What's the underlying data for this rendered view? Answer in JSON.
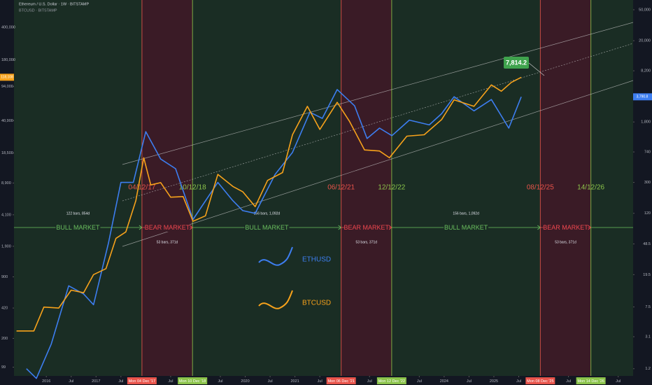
{
  "chart_data": {
    "type": "line",
    "title": "Ethereum / U.S. Dollar · 1W · BITSTAMP",
    "subtitle": "BTCUSD · BITSTAMP",
    "log_scale": true,
    "grid": false,
    "xlim": [
      2015.35,
      2027.8
    ],
    "xticks": [
      2016,
      {
        "value": 2016.5,
        "label": "Jul"
      },
      2017,
      {
        "value": 2017.5,
        "label": "Jul"
      },
      {
        "value": 2018.5,
        "label": "Jul"
      },
      {
        "value": 2019.5,
        "label": "Jul"
      },
      2020,
      {
        "value": 2020.5,
        "label": "Jul"
      },
      2021,
      {
        "value": 2021.5,
        "label": "Jul"
      },
      {
        "value": 2022.5,
        "label": "Jul"
      },
      {
        "value": 2023.5,
        "label": "Jul"
      },
      2024,
      {
        "value": 2024.5,
        "label": "Jul"
      },
      2025,
      {
        "value": 2025.5,
        "label": "Jul"
      },
      {
        "value": 2026.5,
        "label": "Jul"
      },
      {
        "value": 2027.5,
        "label": "Jul"
      }
    ],
    "ylim": [
      80,
      780000
    ],
    "yticks": [
      {
        "value": 400000,
        "label": "400,000"
      },
      {
        "value": 180000,
        "label": "180,000"
      },
      {
        "value": 94000,
        "label": "94,000"
      },
      {
        "value": 40900,
        "label": "40,900"
      },
      {
        "value": 18500,
        "label": "18,500"
      },
      {
        "value": 8900,
        "label": "8,900"
      },
      {
        "value": 4100,
        "label": "4,100"
      },
      {
        "value": 1900,
        "label": "1,900"
      },
      900,
      420,
      200,
      99
    ],
    "y2lim": [
      0.97,
      66800
    ],
    "y2ticks": [
      {
        "value": 50000,
        "label": "50,000"
      },
      {
        "value": 20000,
        "label": "20,000"
      },
      {
        "value": 8200,
        "label": "8,200"
      },
      {
        "value": 1800,
        "label": "1,800"
      },
      740,
      300,
      120,
      48.5,
      19.5,
      7.5,
      3.1,
      1.2
    ],
    "series": [
      {
        "name": "ETHUSD",
        "color": "#3d7ef0",
        "axis": "y2",
        "last_value_label": "3,790.8",
        "x": [
          2015.6,
          2015.8,
          2016.1,
          2016.45,
          2016.75,
          2016.95,
          2017.25,
          2017.5,
          2017.75,
          2018.0,
          2018.3,
          2018.6,
          2018.95,
          2019.45,
          2019.75,
          2019.95,
          2020.2,
          2020.6,
          2020.95,
          2021.3,
          2021.55,
          2021.85,
          2022.2,
          2022.45,
          2022.7,
          2022.95,
          2023.3,
          2023.7,
          2023.95,
          2024.2,
          2024.6,
          2024.95,
          2025.3,
          2025.55
        ],
        "values": [
          1.2,
          0.9,
          2.5,
          14,
          11,
          8,
          50,
          300,
          300,
          1350,
          600,
          450,
          100,
          300,
          175,
          130,
          120,
          380,
          730,
          2400,
          2000,
          4700,
          2900,
          1100,
          1500,
          1200,
          1900,
          1650,
          2300,
          3800,
          2500,
          3500,
          1500,
          3790.8
        ]
      },
      {
        "name": "BTCUSD",
        "color": "#f7a21b",
        "axis": "y",
        "last_value_label": "118,108",
        "x": [
          2015.4,
          2015.75,
          2015.95,
          2016.25,
          2016.5,
          2016.75,
          2016.95,
          2017.2,
          2017.4,
          2017.6,
          2017.8,
          2017.96,
          2018.1,
          2018.3,
          2018.5,
          2018.75,
          2018.95,
          2019.2,
          2019.45,
          2019.75,
          2019.95,
          2020.2,
          2020.45,
          2020.75,
          2020.95,
          2021.25,
          2021.5,
          2021.85,
          2022.1,
          2022.4,
          2022.7,
          2022.9,
          2023.25,
          2023.6,
          2023.95,
          2024.2,
          2024.6,
          2024.95,
          2025.15,
          2025.35,
          2025.55
        ],
        "values": [
          240,
          240,
          430,
          420,
          650,
          610,
          950,
          1100,
          2300,
          2700,
          5800,
          16500,
          8500,
          9000,
          6300,
          6400,
          3500,
          4000,
          11000,
          8200,
          7200,
          5000,
          9500,
          11500,
          29000,
          58000,
          33000,
          64000,
          40000,
          20000,
          19500,
          16500,
          28000,
          29000,
          42000,
          68000,
          58000,
          98000,
          84000,
          104000,
          118108
        ]
      }
    ],
    "cycle_lines": [
      {
        "x": 2017.923,
        "label": "04/12/17",
        "date_label": "Mon 04 Dec '17",
        "color": "#e8534a"
      },
      {
        "x": 2018.94,
        "label": "10/12/18",
        "date_label": "Mon 10 Dec '18",
        "color": "#8bc34a"
      },
      {
        "x": 2021.929,
        "label": "06/12/21",
        "date_label": "Mon 06 Dec '21",
        "color": "#e8534a"
      },
      {
        "x": 2022.945,
        "label": "12/12/22",
        "date_label": "Mon 12 Dec '22",
        "color": "#8bc34a"
      },
      {
        "x": 2025.934,
        "label": "08/12/25",
        "date_label": "Mon 08 Dec '25",
        "color": "#e8534a"
      },
      {
        "x": 2026.951,
        "label": "14/12/26",
        "date_label": "Mon 14 Dec '26",
        "color": "#8bc34a"
      }
    ],
    "phases": [
      {
        "label": "BULL MARKET",
        "bars": "122 bars, 854d",
        "color": "#6abf5e"
      },
      {
        "label": "BEAR MARKET",
        "bars": "53 bars, 371d",
        "color": "#f0474f"
      },
      {
        "label": "BULL MARKET",
        "bars": "156 bars, 1,092d",
        "color": "#6abf5e"
      },
      {
        "label": "BEAR MARKET",
        "bars": "53 bars, 371d",
        "color": "#f0474f"
      },
      {
        "label": "BULL MARKET",
        "bars": "156 bars, 1,092d",
        "color": "#6abf5e"
      },
      {
        "label": "BEAR MARKET",
        "bars": "53 bars, 371d",
        "color": "#f0474f"
      }
    ],
    "annotations": [
      "7,814.2"
    ]
  }
}
